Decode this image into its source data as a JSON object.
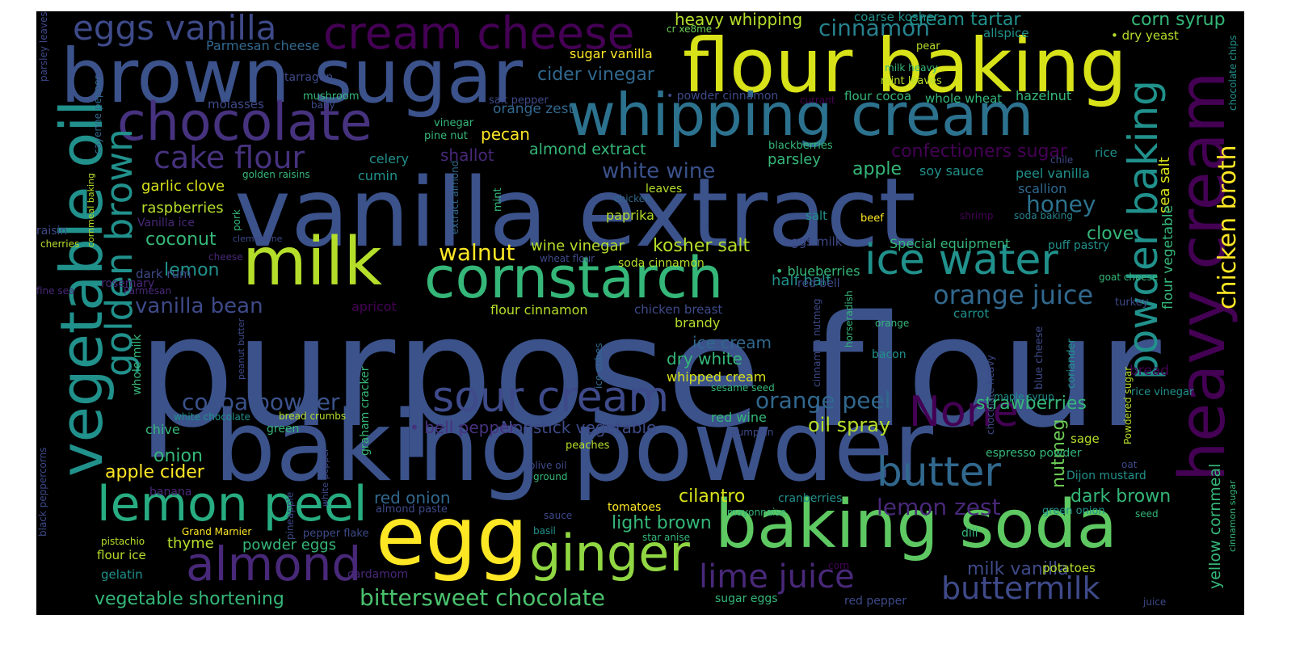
{
  "image": {
    "type": "word cloud",
    "background": "#000000",
    "colormap": "viridis"
  },
  "words": [
    {
      "text": "purpose flour",
      "color": "#3b528b"
    },
    {
      "text": "vanilla extract",
      "color": "#3b528b"
    },
    {
      "text": "baking powder",
      "color": "#3b528b"
    },
    {
      "text": "flour baking",
      "color": "#d8e219"
    },
    {
      "text": "brown sugar",
      "color": "#3b528b"
    },
    {
      "text": "whipping cream",
      "color": "#2c728e"
    },
    {
      "text": "egg",
      "color": "#fde725"
    },
    {
      "text": "baking soda",
      "color": "#5ec962"
    },
    {
      "text": "milk",
      "color": "#b5de2b"
    },
    {
      "text": "cornstarch",
      "color": "#35b779"
    },
    {
      "text": "vegetable oil",
      "color": "#21918c"
    },
    {
      "text": "heavy cream",
      "color": "#440154"
    },
    {
      "text": "chocolate",
      "color": "#46327e"
    },
    {
      "text": "ginger",
      "color": "#90d743"
    },
    {
      "text": "lemon peel",
      "color": "#27ad81"
    },
    {
      "text": "cream cheese",
      "color": "#440154"
    },
    {
      "text": "almond",
      "color": "#482878"
    },
    {
      "text": "sour cream",
      "color": "#3e4a89"
    },
    {
      "text": "None",
      "color": "#440154"
    },
    {
      "text": "ice water",
      "color": "#21918c"
    },
    {
      "text": "powder baking",
      "color": "#21918c"
    },
    {
      "text": "golden brown",
      "color": "#21918c"
    },
    {
      "text": "eggs vanilla",
      "color": "#3e4a89"
    },
    {
      "text": "butter",
      "color": "#31688e"
    },
    {
      "text": "cake flour",
      "color": "#46327e"
    },
    {
      "text": "lime juice",
      "color": "#482878"
    },
    {
      "text": "buttermilk",
      "color": "#3e4a89"
    },
    {
      "text": "bittersweet chocolate",
      "color": "#4ac16d"
    },
    {
      "text": "cinnamon",
      "color": "#26828e"
    },
    {
      "text": "chicken broth",
      "color": "#fde725"
    },
    {
      "text": "orange juice",
      "color": "#31688e"
    },
    {
      "text": "cocoa powder",
      "color": "#3b528b"
    },
    {
      "text": "vanilla bean",
      "color": "#3e4a89"
    },
    {
      "text": "orange peel",
      "color": "#31688e"
    },
    {
      "text": "white wine",
      "color": "#3b528b"
    },
    {
      "text": "walnut",
      "color": "#fde725"
    },
    {
      "text": "lemon zest",
      "color": "#482878"
    },
    {
      "text": "honey",
      "color": "#2c728e"
    },
    {
      "text": "cider vinegar",
      "color": "#31688e"
    },
    {
      "text": "confectioners sugar",
      "color": "#440154"
    },
    {
      "text": "kosher salt",
      "color": "#b5de2b"
    },
    {
      "text": "vegetable shortening",
      "color": "#35b779"
    },
    {
      "text": "strawberries",
      "color": "#35b779"
    },
    {
      "text": "oil spray",
      "color": "#b5de2b"
    },
    {
      "text": "cream tartar",
      "color": "#21918c"
    },
    {
      "text": "corn syrup",
      "color": "#35b779"
    },
    {
      "text": "coconut",
      "color": "#35b779"
    },
    {
      "text": "apple cider",
      "color": "#fde725"
    },
    {
      "text": "onion",
      "color": "#35b779"
    },
    {
      "text": "lemon",
      "color": "#21918c"
    },
    {
      "text": "nutmeg",
      "color": "#6ece58"
    },
    {
      "text": "yellow cornmeal",
      "color": "#35b779"
    },
    {
      "text": "milk vanilla",
      "color": "#3e4a89"
    },
    {
      "text": "dark brown",
      "color": "#35b779"
    },
    {
      "text": "light brown",
      "color": "#35b779"
    },
    {
      "text": "cilantro",
      "color": "#d8e219"
    },
    {
      "text": "apple",
      "color": "#35b779"
    },
    {
      "text": "clove",
      "color": "#35b779"
    },
    {
      "text": "heavy whipping",
      "color": "#b5de2b"
    },
    {
      "text": "pecan",
      "color": "#fde725"
    },
    {
      "text": "almond extract",
      "color": "#35b779"
    },
    {
      "text": "ice cream",
      "color": "#31688e"
    },
    {
      "text": "dry white",
      "color": "#35b779"
    },
    {
      "text": "red onion",
      "color": "#31688e"
    },
    {
      "text": "Nonstick vegetable",
      "color": "#3e4a89"
    },
    {
      "text": "bell pepper",
      "color": "#46327e"
    },
    {
      "text": "garlic clove",
      "color": "#d8e219"
    },
    {
      "text": "raspberries",
      "color": "#b5de2b"
    },
    {
      "text": "shallot",
      "color": "#482878"
    },
    {
      "text": "parsley",
      "color": "#35b779"
    },
    {
      "text": "half half",
      "color": "#21918c"
    },
    {
      "text": "blueberries",
      "color": "#35b779"
    },
    {
      "text": "sugar vanilla",
      "color": "#fde725"
    },
    {
      "text": "Parmesan cheese",
      "color": "#31688e"
    },
    {
      "text": "cr xe8me",
      "color": "#6ece58"
    },
    {
      "text": "coarse kosher",
      "color": "#21918c"
    },
    {
      "text": "allspice",
      "color": "#21918c"
    },
    {
      "text": "dry yeast",
      "color": "#b5de2b"
    },
    {
      "text": "pear",
      "color": "#b5de2b"
    },
    {
      "text": "milk heavy",
      "color": "#35b779"
    },
    {
      "text": "mint leaves",
      "color": "#b5de2b"
    },
    {
      "text": "hazelnut",
      "color": "#35b779"
    },
    {
      "text": "whole wheat",
      "color": "#35b779"
    },
    {
      "text": "flour cocoa",
      "color": "#35b779"
    },
    {
      "text": "currant",
      "color": "#440154"
    },
    {
      "text": "powder cinnamon",
      "color": "#3e4a89"
    },
    {
      "text": "salt pepper",
      "color": "#3e4a89"
    },
    {
      "text": "orange zest",
      "color": "#31688e"
    },
    {
      "text": "tarragon",
      "color": "#3e4a89"
    },
    {
      "text": "molasses",
      "color": "#3e4a89"
    },
    {
      "text": "mushroom",
      "color": "#35b779"
    },
    {
      "text": "baby",
      "color": "#3e4a89"
    },
    {
      "text": "vinegar",
      "color": "#35b779"
    },
    {
      "text": "pine nut",
      "color": "#35b779"
    },
    {
      "text": "celery",
      "color": "#21918c"
    },
    {
      "text": "cumin",
      "color": "#21918c"
    },
    {
      "text": "golden raisins",
      "color": "#35b779"
    },
    {
      "text": "blackberries",
      "color": "#35b779"
    },
    {
      "text": "chicken",
      "color": "#31688e"
    },
    {
      "text": "leaves",
      "color": "#b5de2b"
    },
    {
      "text": "mint",
      "color": "#35b779"
    },
    {
      "text": "extract almond",
      "color": "#31688e"
    },
    {
      "text": "paprika",
      "color": "#b5de2b"
    },
    {
      "text": "salt",
      "color": "#21918c"
    },
    {
      "text": "beef",
      "color": "#fde725"
    },
    {
      "text": "shrimp",
      "color": "#440154"
    },
    {
      "text": "soda baking",
      "color": "#26828e"
    },
    {
      "text": "soy sauce",
      "color": "#21918c"
    },
    {
      "text": "peel vanilla",
      "color": "#21918c"
    },
    {
      "text": "scallion",
      "color": "#31688e"
    },
    {
      "text": "chile",
      "color": "#3e4a89"
    },
    {
      "text": "rice",
      "color": "#21918c"
    },
    {
      "text": "sea salt",
      "color": "#d8e219"
    },
    {
      "text": "flour vegetable",
      "color": "#35b779"
    },
    {
      "text": "chocolate chips",
      "color": "#21918c"
    },
    {
      "text": "cinnamon sugar",
      "color": "#35b779"
    },
    {
      "text": "eggs milk",
      "color": "#3e4a89"
    },
    {
      "text": "Special equipment",
      "color": "#35b779"
    },
    {
      "text": "puff pastry",
      "color": "#21918c"
    },
    {
      "text": "goat cheese",
      "color": "#35b779"
    },
    {
      "text": "red bell",
      "color": "#3e4a89"
    },
    {
      "text": "turkey",
      "color": "#3e4a89"
    },
    {
      "text": "carrot",
      "color": "#21918c"
    },
    {
      "text": "orange",
      "color": "#35b779"
    },
    {
      "text": "bacon",
      "color": "#21918c"
    },
    {
      "text": "bread",
      "color": "#440154"
    },
    {
      "text": "rice vinegar",
      "color": "#21918c"
    },
    {
      "text": "maple syrup",
      "color": "#21918c"
    },
    {
      "text": "blue cheese",
      "color": "#3e4a89"
    },
    {
      "text": "coriander",
      "color": "#21918c"
    },
    {
      "text": "chocolate heavy",
      "color": "#3e4a89"
    },
    {
      "text": "Powdered sugar",
      "color": "#b5de2b"
    },
    {
      "text": "horseradish",
      "color": "#35b779"
    },
    {
      "text": "cinnamon nutmeg",
      "color": "#3e4a89"
    },
    {
      "text": "sesame seed",
      "color": "#35b779"
    },
    {
      "text": "whipped cream",
      "color": "#d8e219"
    },
    {
      "text": "brandy",
      "color": "#b5de2b"
    },
    {
      "text": "chicken breast",
      "color": "#3e4a89"
    },
    {
      "text": "flour cinnamon",
      "color": "#b5de2b"
    },
    {
      "text": "soda cinnamon",
      "color": "#b5de2b"
    },
    {
      "text": "wine vinegar",
      "color": "#b5de2b"
    },
    {
      "text": "wheat flour",
      "color": "#3e4a89"
    },
    {
      "text": "red wine",
      "color": "#35b779"
    },
    {
      "text": "green",
      "color": "#35b779"
    },
    {
      "text": "pumpkin",
      "color": "#3e4a89"
    },
    {
      "text": "espresso powder",
      "color": "#35b779"
    },
    {
      "text": "sage",
      "color": "#b5de2b"
    },
    {
      "text": "oat",
      "color": "#3e4a89"
    },
    {
      "text": "Dijon mustard",
      "color": "#21918c"
    },
    {
      "text": "green onion",
      "color": "#21918c"
    },
    {
      "text": "seed",
      "color": "#35b779"
    },
    {
      "text": "dill",
      "color": "#35b779"
    },
    {
      "text": "potatoes",
      "color": "#b5de2b"
    },
    {
      "text": "juice",
      "color": "#3e4a89"
    },
    {
      "text": "red pepper",
      "color": "#3e4a89"
    },
    {
      "text": "sugar eggs",
      "color": "#35b779"
    },
    {
      "text": "corn",
      "color": "#440154"
    },
    {
      "text": "cranberries",
      "color": "#21918c"
    },
    {
      "text": "mayonnaise",
      "color": "#35b779"
    },
    {
      "text": "tomatoes",
      "color": "#fde725"
    },
    {
      "text": "star anise",
      "color": "#35b779"
    },
    {
      "text": "basil",
      "color": "#21918c"
    },
    {
      "text": "sauce",
      "color": "#3e4a89"
    },
    {
      "text": "peaches",
      "color": "#b5de2b"
    },
    {
      "text": "olive oil",
      "color": "#3e4a89"
    },
    {
      "text": "ground",
      "color": "#35b779"
    },
    {
      "text": "cardamom",
      "color": "#482878"
    },
    {
      "text": "almond paste",
      "color": "#3e4a89"
    },
    {
      "text": "graham cracker",
      "color": "#35b779"
    },
    {
      "text": "ice cubes",
      "color": "#31688e"
    },
    {
      "text": "peanut butter",
      "color": "#3e4a89"
    },
    {
      "text": "apricot",
      "color": "#440154"
    },
    {
      "text": "pepper flake",
      "color": "#3e4a89"
    },
    {
      "text": "Grand Marnier",
      "color": "#fde725"
    },
    {
      "text": "pineapple",
      "color": "#3e4a89"
    },
    {
      "text": "white pepper",
      "color": "#3e4a89"
    },
    {
      "text": "bread crumbs",
      "color": "#b5de2b"
    },
    {
      "text": "white chocolate",
      "color": "#21918c"
    },
    {
      "text": "chive",
      "color": "#35b779"
    },
    {
      "text": "whole milk",
      "color": "#35b779"
    },
    {
      "text": "banana",
      "color": "#482878"
    },
    {
      "text": "pistachio",
      "color": "#b5de2b"
    },
    {
      "text": "thyme",
      "color": "#b5de2b"
    },
    {
      "text": "powder eggs",
      "color": "#35b779"
    },
    {
      "text": "flour ice",
      "color": "#b5de2b"
    },
    {
      "text": "gelatin",
      "color": "#21918c"
    },
    {
      "text": "dark rum",
      "color": "#3e4a89"
    },
    {
      "text": "clementine",
      "color": "#3e4a89"
    },
    {
      "text": "cheese",
      "color": "#482878"
    },
    {
      "text": "pork",
      "color": "#35b779"
    },
    {
      "text": "Vanilla ice",
      "color": "#482878"
    },
    {
      "text": "cherries",
      "color": "#b5de2b"
    },
    {
      "text": "raisin",
      "color": "#3e4a89"
    },
    {
      "text": "rosemary",
      "color": "#482878"
    },
    {
      "text": "Parmesan",
      "color": "#482878"
    },
    {
      "text": "fine sea",
      "color": "#482878"
    },
    {
      "text": "cornmeal baking",
      "color": "#b5de2b"
    },
    {
      "text": "cayenne pepper",
      "color": "#31688e"
    },
    {
      "text": "parsley leaves",
      "color": "#3e4a89"
    },
    {
      "text": "black peppercorns",
      "color": "#3e4a89"
    }
  ]
}
